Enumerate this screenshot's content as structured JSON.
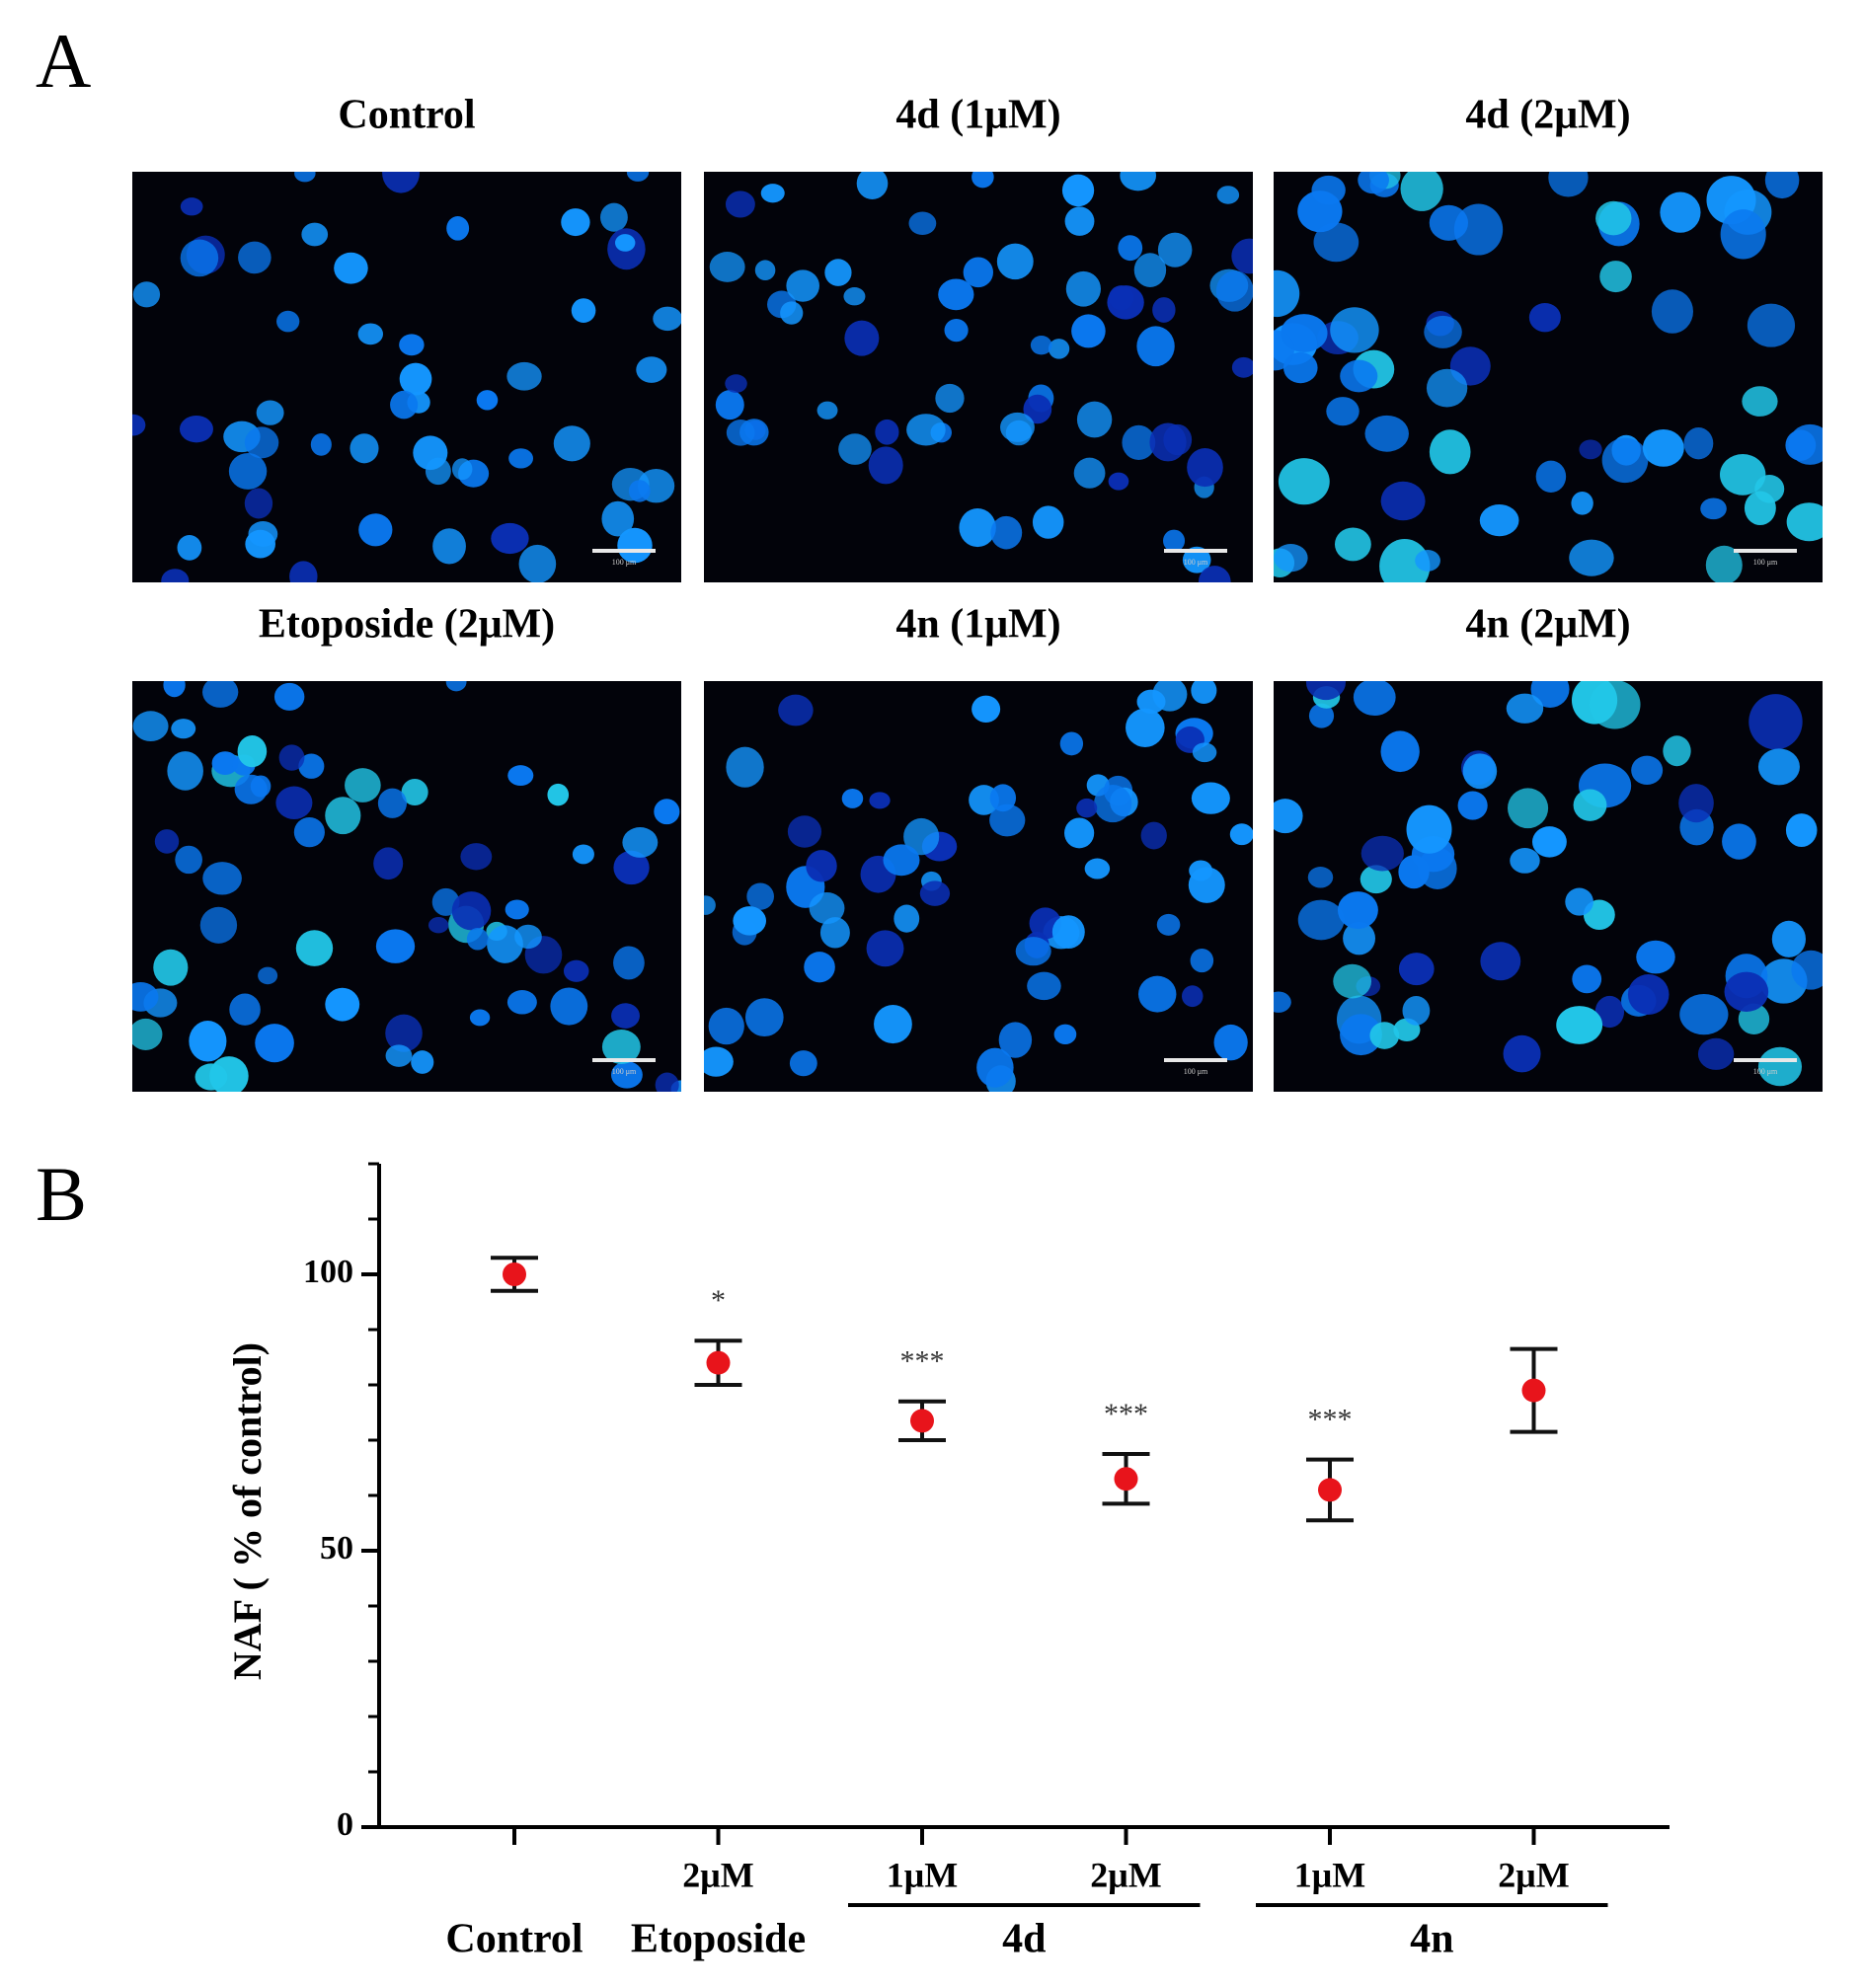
{
  "panel_a": {
    "label": "A",
    "images": [
      {
        "title": "Control"
      },
      {
        "title": "4d (1μM)"
      },
      {
        "title": "4d (2μM)"
      },
      {
        "title": "Etoposide (2μM)"
      },
      {
        "title": "4n (1μM)"
      },
      {
        "title": "4n (2μM)"
      }
    ],
    "scale_bar": "100 μm"
  },
  "chart_data": {
    "type": "errorbar",
    "panel_label": "B",
    "y_label": "NAF ( % of control)",
    "categories": [
      null,
      "2μM",
      "1μM",
      "2μM",
      "1μM",
      "2μM"
    ],
    "groups": [
      {
        "name": "Control",
        "size": 1
      },
      {
        "name": "Etoposide",
        "size": 1
      },
      {
        "name": "4d",
        "size": 2
      },
      {
        "name": "4n",
        "size": 2
      }
    ],
    "values": [
      100,
      84,
      73.5,
      63,
      61,
      79
    ],
    "errors": [
      3,
      4,
      3.5,
      4.5,
      5.5,
      7.5
    ],
    "annotations": [
      null,
      "*",
      "***",
      "***",
      "***",
      null
    ],
    "color": "#e8141b",
    "ylim": [
      0,
      120
    ],
    "yticks": [
      0,
      50,
      100
    ],
    "yminorticks": [
      10,
      20,
      30,
      40,
      60,
      70,
      80,
      90,
      110,
      120
    ]
  }
}
